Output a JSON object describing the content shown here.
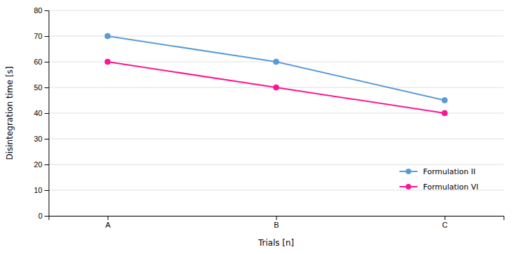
{
  "chart_data": {
    "type": "line",
    "categories": [
      "A",
      "B",
      "C"
    ],
    "series": [
      {
        "name": "Formulation II",
        "color": "#5B9BD5",
        "marker": "circle",
        "values": [
          70,
          60,
          45
        ]
      },
      {
        "name": "Formulation VI",
        "color": "#FF1493",
        "marker": "circle",
        "values": [
          60,
          50,
          40
        ]
      }
    ],
    "xlabel": "Trials [n]",
    "ylabel": "Disintegration time [s]",
    "ylim": [
      0,
      80
    ],
    "yticks": [
      0,
      10,
      20,
      30,
      40,
      50,
      60,
      70,
      80
    ],
    "grid": true,
    "legend": "lower right"
  }
}
